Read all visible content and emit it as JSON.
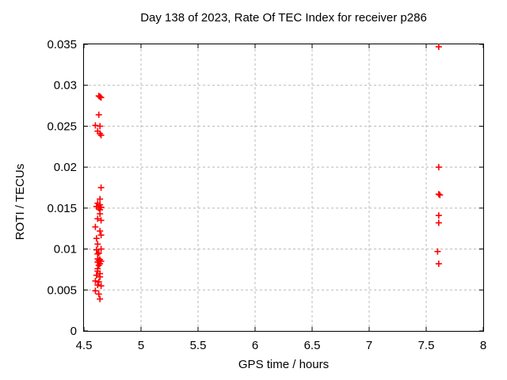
{
  "chart_data": {
    "type": "scatter",
    "title": "Day 138 of 2023, Rate Of TEC Index for receiver p286",
    "xlabel": "GPS time / hours",
    "ylabel": "ROTI / TECUs",
    "xlim": [
      4.5,
      8
    ],
    "ylim": [
      0,
      0.035
    ],
    "xticks": [
      4.5,
      5,
      5.5,
      6,
      6.5,
      7,
      7.5,
      8
    ],
    "xtick_labels": [
      "4.5",
      "5",
      "5.5",
      "6",
      "6.5",
      "7",
      "7.5",
      "8"
    ],
    "yticks": [
      0,
      0.005,
      0.01,
      0.015,
      0.02,
      0.025,
      0.03,
      0.035
    ],
    "ytick_labels": [
      "0",
      "0.005",
      "0.01",
      "0.015",
      "0.02",
      "0.025",
      "0.03",
      "0.035"
    ],
    "grid": true,
    "legend": false,
    "marker": {
      "shape": "plus",
      "color": "#ff0000",
      "size": 8
    },
    "colors": {
      "axis": "#000000",
      "grid": "#b8b8b8",
      "background": "#ffffff"
    },
    "series": [
      {
        "name": "ROTI",
        "points": [
          [
            4.63,
            0.0287
          ],
          [
            4.64,
            0.0286
          ],
          [
            4.65,
            0.0285
          ],
          [
            4.63,
            0.0264
          ],
          [
            4.6,
            0.0251
          ],
          [
            4.64,
            0.025
          ],
          [
            4.62,
            0.0244
          ],
          [
            4.64,
            0.0241
          ],
          [
            4.65,
            0.0239
          ],
          [
            4.65,
            0.0175
          ],
          [
            4.64,
            0.0161
          ],
          [
            4.62,
            0.0156
          ],
          [
            4.64,
            0.0154
          ],
          [
            4.61,
            0.0152
          ],
          [
            4.65,
            0.0151
          ],
          [
            4.63,
            0.015
          ],
          [
            4.64,
            0.0148
          ],
          [
            4.64,
            0.0143
          ],
          [
            4.62,
            0.0137
          ],
          [
            4.65,
            0.0135
          ],
          [
            4.6,
            0.0127
          ],
          [
            4.64,
            0.0122
          ],
          [
            4.65,
            0.0117
          ],
          [
            4.61,
            0.0113
          ],
          [
            4.62,
            0.0106
          ],
          [
            4.65,
            0.01
          ],
          [
            4.61,
            0.0099
          ],
          [
            4.63,
            0.0095
          ],
          [
            4.62,
            0.0094
          ],
          [
            4.62,
            0.0088
          ],
          [
            4.64,
            0.0087
          ],
          [
            4.63,
            0.0086
          ],
          [
            4.65,
            0.0085
          ],
          [
            4.62,
            0.0084
          ],
          [
            4.64,
            0.0082
          ],
          [
            4.63,
            0.008
          ],
          [
            4.62,
            0.0076
          ],
          [
            4.62,
            0.0073
          ],
          [
            4.64,
            0.007
          ],
          [
            4.61,
            0.0068
          ],
          [
            4.64,
            0.0066
          ],
          [
            4.6,
            0.0061
          ],
          [
            4.63,
            0.006
          ],
          [
            4.62,
            0.0056
          ],
          [
            4.65,
            0.0055
          ],
          [
            4.6,
            0.0049
          ],
          [
            4.63,
            0.0045
          ],
          [
            4.64,
            0.0039
          ],
          [
            7.61,
            0.0347
          ],
          [
            7.61,
            0.02
          ],
          [
            7.61,
            0.0167
          ],
          [
            7.62,
            0.0166
          ],
          [
            7.61,
            0.0141
          ],
          [
            7.61,
            0.0132
          ],
          [
            7.6,
            0.0097
          ],
          [
            7.61,
            0.0082
          ]
        ]
      }
    ]
  }
}
